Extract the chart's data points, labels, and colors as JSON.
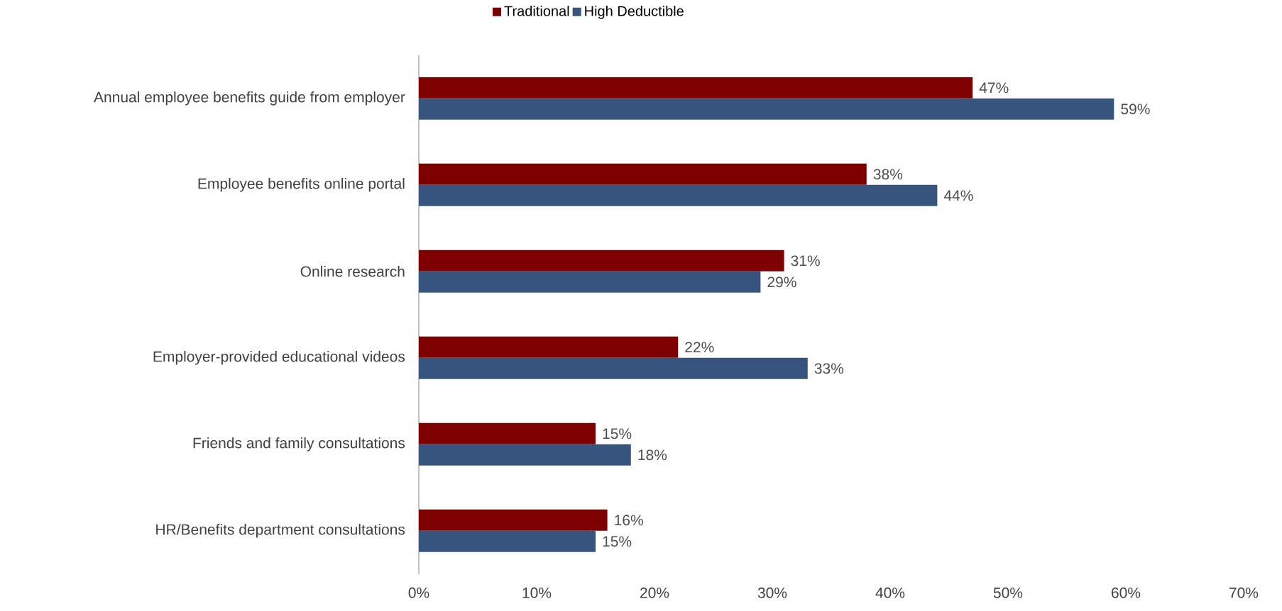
{
  "chart_data": {
    "type": "bar",
    "orientation": "horizontal",
    "categories": [
      "Annual employee benefits guide from employer",
      "Employee benefits online portal",
      "Online research",
      "Employer-provided educational videos",
      "Friends and family consultations",
      "HR/Benefits department consultations"
    ],
    "series": [
      {
        "name": "Traditional",
        "color": "#7f0000",
        "values": [
          47,
          38,
          31,
          22,
          15,
          16
        ],
        "value_labels": [
          "47%",
          "38%",
          "31%",
          "22%",
          "15%",
          "16%"
        ]
      },
      {
        "name": "High Deductible",
        "color": "#36547e",
        "values": [
          59,
          44,
          29,
          33,
          18,
          15
        ],
        "value_labels": [
          "59%",
          "44%",
          "29%",
          "33%",
          "18%",
          "15%"
        ]
      }
    ],
    "xlim": [
      0,
      70
    ],
    "xticks": [
      {
        "value": 0,
        "label": "0%"
      },
      {
        "value": 10,
        "label": "10%"
      },
      {
        "value": 20,
        "label": "20%"
      },
      {
        "value": 30,
        "label": "30%"
      },
      {
        "value": 40,
        "label": "40%"
      },
      {
        "value": 50,
        "label": "50%"
      },
      {
        "value": 60,
        "label": "60%"
      },
      {
        "value": 70,
        "label": "70%"
      }
    ],
    "legend": "top"
  }
}
